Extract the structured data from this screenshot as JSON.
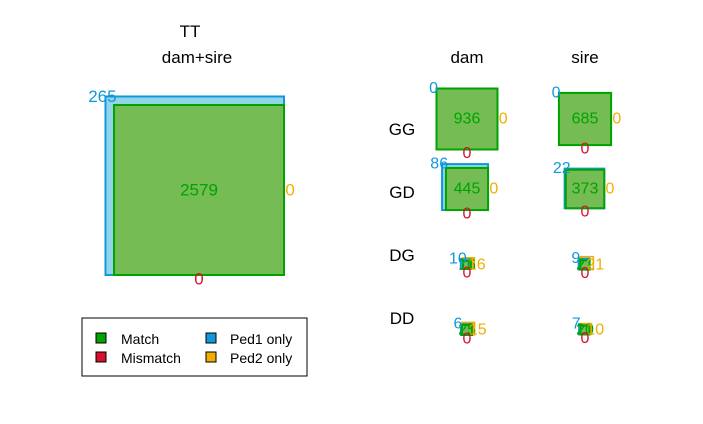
{
  "colors": {
    "match": "#00A300",
    "match_fill": "#74BC53",
    "mismatch": "#D5112B",
    "ped1": "#0F99DB",
    "ped1_fill": "#92D5EB",
    "ped2": "#F2AE00",
    "text": "#000000"
  },
  "chart_data": {
    "type": "area",
    "main": {
      "title": "TT",
      "subtitle": "dam+sire",
      "match": 2579,
      "mismatch": 0,
      "ped1_only": 265,
      "ped2_only": 0
    },
    "columns": [
      "dam",
      "sire"
    ],
    "rows": [
      "GG",
      "GD",
      "DG",
      "DD"
    ],
    "cells": {
      "GG": {
        "dam": {
          "match": 936,
          "mismatch": 0,
          "ped1_only": 0,
          "ped2_only": 0
        },
        "sire": {
          "match": 685,
          "mismatch": 0,
          "ped1_only": 0,
          "ped2_only": 0
        }
      },
      "GD": {
        "dam": {
          "match": 445,
          "mismatch": 0,
          "ped1_only": 86,
          "ped2_only": 0
        },
        "sire": {
          "match": 373,
          "mismatch": 0,
          "ped1_only": 22,
          "ped2_only": 0
        }
      },
      "DG": {
        "dam": {
          "match": 16,
          "mismatch": 0,
          "ped1_only": 10,
          "ped2_only": 16
        },
        "sire": {
          "match": 21,
          "mismatch": 0,
          "ped1_only": 9,
          "ped2_only": 21
        }
      },
      "DD": {
        "dam": {
          "match": 25,
          "mismatch": 0,
          "ped1_only": 6,
          "ped2_only": 15
        },
        "sire": {
          "match": 20,
          "mismatch": 0,
          "ped1_only": 7,
          "ped2_only": 10
        }
      }
    },
    "legend": {
      "position": "bottom-left",
      "items": [
        "Match",
        "Mismatch",
        "Ped1 only",
        "Ped2 only"
      ]
    }
  }
}
